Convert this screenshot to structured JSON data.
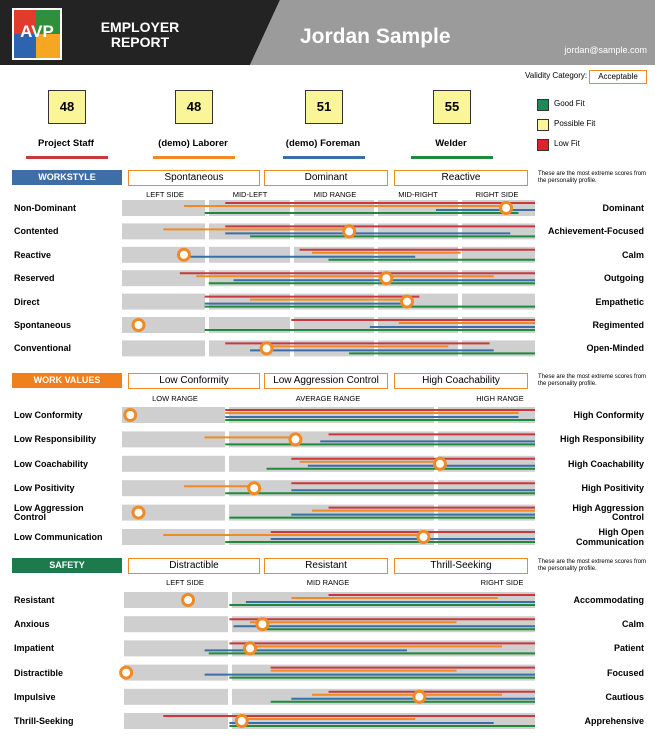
{
  "header": {
    "logo": "AVP",
    "title": "EMPLOYER\nREPORT",
    "name": "Jordan Sample",
    "email": "jordan@sample.com"
  },
  "validity": {
    "label": "Validity Category:",
    "value": "Acceptable"
  },
  "scores": [
    {
      "score": 48,
      "label": "Project Staff",
      "color": "#c8383c"
    },
    {
      "score": 48,
      "label": "(demo) Laborer",
      "color": "#f08a24"
    },
    {
      "score": 51,
      "label": "(demo) Foreman",
      "color": "#3a6ea8"
    },
    {
      "score": 55,
      "label": "Welder",
      "color": "#1f8a3c"
    }
  ],
  "legend": [
    {
      "label": "Good Fit",
      "color": "#1e8a5a"
    },
    {
      "label": "Possible Fit",
      "color": "#fbf59a"
    },
    {
      "label": "Low Fit",
      "color": "#e0202a"
    }
  ],
  "sections": [
    {
      "title": "WORKSTYLE",
      "color": "#3d6fa6",
      "tags": [
        "Spontaneous",
        "Dominant",
        "Reactive"
      ],
      "note": "These are the most extreme scores from the personality profile.",
      "scale": [
        "LEFT SIDE",
        "MID-LEFT",
        "MID RANGE",
        "MID-RIGHT",
        "RIGHT SIDE"
      ],
      "rows": [
        {
          "left": "Non-Dominant",
          "right": "Dominant",
          "marker": 93,
          "ranges": [
            [
              25,
              100
            ],
            [
              15,
              93
            ],
            [
              76,
              100
            ],
            [
              20,
              96
            ]
          ]
        },
        {
          "left": "Contented",
          "right": "Achievement-Focused",
          "marker": 55,
          "ranges": [
            [
              25,
              100
            ],
            [
              10,
              55
            ],
            [
              25,
              94
            ],
            [
              31,
              100
            ]
          ]
        },
        {
          "left": "Reactive",
          "right": "Calm",
          "marker": 15,
          "ranges": [
            [
              43,
              100
            ],
            [
              46,
              82
            ],
            [
              15,
              71
            ],
            [
              50,
              100
            ]
          ]
        },
        {
          "left": "Reserved",
          "right": "Outgoing",
          "marker": 64,
          "ranges": [
            [
              14,
              100
            ],
            [
              18,
              90
            ],
            [
              27,
              100
            ],
            [
              21,
              100
            ]
          ]
        },
        {
          "left": "Direct",
          "right": "Empathetic",
          "marker": 69,
          "ranges": [
            [
              20,
              72
            ],
            [
              31,
              69
            ],
            [
              20,
              69
            ],
            [
              20,
              100
            ]
          ]
        },
        {
          "left": "Spontaneous",
          "right": "Regimented",
          "marker": 4,
          "ranges": [
            [
              41,
              100
            ],
            [
              67,
              100
            ],
            [
              60,
              100
            ],
            [
              20,
              100
            ]
          ]
        },
        {
          "left": "Conventional",
          "right": "Open-Minded",
          "marker": 35,
          "ranges": [
            [
              25,
              89
            ],
            [
              35,
              79
            ],
            [
              31,
              90
            ],
            [
              55,
              100
            ]
          ]
        }
      ]
    },
    {
      "title": "WORK VALUES",
      "color": "#f07f1e",
      "tags": [
        "Low Conformity",
        "Low Aggression Control",
        "High Coachability"
      ],
      "note": "These are the most extreme scores from the personality profile.",
      "scale": [
        "LOW RANGE",
        "AVERAGE RANGE",
        "HIGH RANGE"
      ],
      "rows": [
        {
          "left": "Low Conformity",
          "right": "High Conformity",
          "marker": 2,
          "ranges": [
            [
              25,
              100
            ],
            [
              25,
              96
            ],
            [
              25,
              96
            ],
            [
              25,
              100
            ]
          ]
        },
        {
          "left": "Low Responsibility",
          "right": "High Responsibility",
          "marker": 42,
          "ranges": [
            [
              50,
              100
            ],
            [
              20,
              42
            ],
            [
              48,
              100
            ],
            [
              25,
              100
            ]
          ]
        },
        {
          "left": "Low Coachability",
          "right": "High Coachability",
          "marker": 77,
          "ranges": [
            [
              41,
              100
            ],
            [
              43,
              77
            ],
            [
              45,
              100
            ],
            [
              35,
              100
            ]
          ]
        },
        {
          "left": "Low Positivity",
          "right": "High Positivity",
          "marker": 32,
          "ranges": [
            [
              41,
              100
            ],
            [
              15,
              32
            ],
            [
              41,
              100
            ],
            [
              25,
              100
            ]
          ]
        },
        {
          "left": "Low Aggression\nControl",
          "right": "High Aggression\nControl",
          "marker": 4,
          "ranges": [
            [
              50,
              100
            ],
            [
              46,
              100
            ],
            [
              41,
              100
            ],
            [
              26,
              100
            ]
          ]
        },
        {
          "left": "Low Communication",
          "right": "High Open\nCommunication",
          "marker": 73,
          "ranges": [
            [
              36,
              100
            ],
            [
              10,
              73
            ],
            [
              36,
              100
            ],
            [
              25,
              100
            ]
          ]
        }
      ]
    },
    {
      "title": "SAFETY",
      "color": "#1d7a4c",
      "tags": [
        "Distractible",
        "Resistant",
        "Thrill-Seeking"
      ],
      "note": "These are the most extreme scores from the personality profile.",
      "scale": [
        "LEFT SIDE",
        "MID RANGE",
        "RIGHT SIDE"
      ],
      "rows": [
        {
          "left": "Resistant",
          "right": "Accommodating",
          "marker": 16,
          "ranges": [
            [
              50,
              100
            ],
            [
              41,
              91
            ],
            [
              30,
              100
            ],
            [
              26,
              100
            ]
          ]
        },
        {
          "left": "Anxious",
          "right": "Calm",
          "marker": 34,
          "ranges": [
            [
              26,
              100
            ],
            [
              31,
              81
            ],
            [
              27,
              100
            ],
            [
              35,
              100
            ]
          ]
        },
        {
          "left": "Impatient",
          "right": "Patient",
          "marker": 31,
          "ranges": [
            [
              26,
              100
            ],
            [
              31,
              92
            ],
            [
              20,
              69
            ],
            [
              21,
              100
            ]
          ]
        },
        {
          "left": "Distractible",
          "right": "Focused",
          "marker": 1,
          "ranges": [
            [
              36,
              100
            ],
            [
              36,
              81
            ],
            [
              20,
              100
            ],
            [
              26,
              100
            ]
          ]
        },
        {
          "left": "Impulsive",
          "right": "Cautious",
          "marker": 72,
          "ranges": [
            [
              50,
              100
            ],
            [
              46,
              92
            ],
            [
              41,
              100
            ],
            [
              36,
              100
            ]
          ]
        },
        {
          "left": "Thrill-Seeking",
          "right": "Apprehensive",
          "marker": 29,
          "ranges": [
            [
              10,
              100
            ],
            [
              29,
              71
            ],
            [
              26,
              90
            ],
            [
              26,
              100
            ]
          ]
        }
      ]
    }
  ]
}
